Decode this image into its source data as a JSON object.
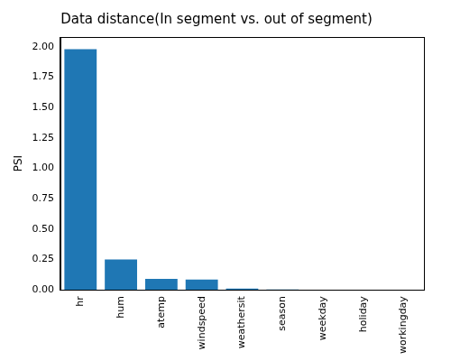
{
  "chart_data": {
    "type": "bar",
    "title": "Data distance(In segment vs. out of segment)",
    "y_label": "PSI",
    "categories": [
      "hr",
      "hum",
      "atemp",
      "windspeed",
      "weathersit",
      "season",
      "weekday",
      "holiday",
      "workingday"
    ],
    "values": [
      1.98,
      0.25,
      0.09,
      0.085,
      0.01,
      0.002,
      0.001,
      0.0005,
      0.0003
    ],
    "color": "#1f77b4",
    "ylim": [
      0,
      2.08
    ],
    "yticks": [
      {
        "value": 0,
        "label": "0.00"
      },
      {
        "value": 0.25,
        "label": "0.25"
      },
      {
        "value": 0.5,
        "label": "0.50"
      },
      {
        "value": 0.75,
        "label": "0.75"
      },
      {
        "value": 1,
        "label": "1.00"
      },
      {
        "value": 1.25,
        "label": "1.25"
      },
      {
        "value": 1.5,
        "label": "1.50"
      },
      {
        "value": 1.75,
        "label": "1.75"
      },
      {
        "value": 2,
        "label": "2.00"
      }
    ],
    "grid": false
  }
}
